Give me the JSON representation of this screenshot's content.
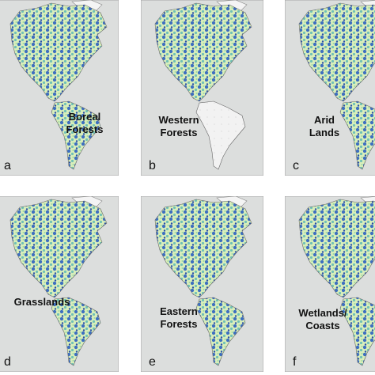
{
  "panels": [
    {
      "label_lines": [
        "Boreal",
        "Forests"
      ],
      "letter": "a"
    },
    {
      "label_lines": [
        "Western",
        "Forests"
      ],
      "letter": "b"
    },
    {
      "label_lines": [
        "Arid",
        "Lands"
      ],
      "letter": "c"
    },
    {
      "label_lines": [
        "Grasslands"
      ],
      "letter": "d"
    },
    {
      "label_lines": [
        "Eastern",
        "Forests"
      ],
      "letter": "e"
    },
    {
      "label_lines": [
        "Wetlands/",
        "Coasts"
      ],
      "letter": "f"
    }
  ]
}
